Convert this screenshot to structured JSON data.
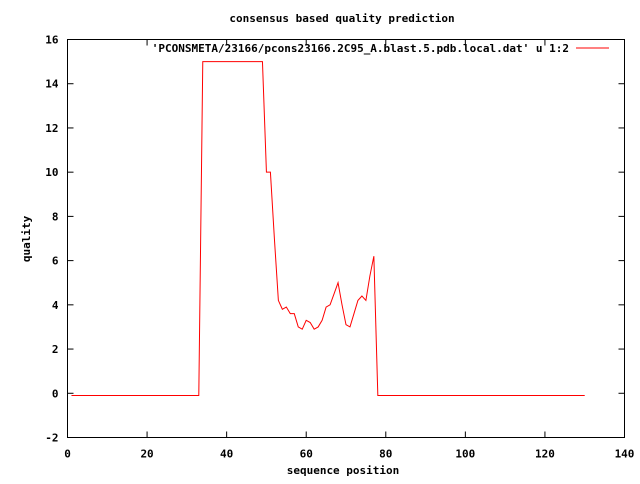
{
  "chart_data": {
    "type": "line",
    "title": "consensus based quality prediction",
    "xlabel": "sequence position",
    "ylabel": "quality",
    "xlim": [
      0,
      140
    ],
    "ylim": [
      -2,
      16
    ],
    "xticks": [
      0,
      20,
      40,
      60,
      80,
      100,
      120,
      140
    ],
    "yticks": [
      -2,
      0,
      2,
      4,
      6,
      8,
      10,
      12,
      14,
      16
    ],
    "grid": false,
    "legend_position": "top-right",
    "series": [
      {
        "name": "'PCONSMETA/23166/pcons23166.2C95_A.blast.5.pdb.local.dat' u 1:2",
        "color": "#ff0000",
        "x": [
          1,
          33,
          34,
          35,
          49,
          50,
          51,
          52,
          53,
          54,
          55,
          56,
          57,
          58,
          59,
          60,
          61,
          62,
          63,
          64,
          65,
          66,
          67,
          68,
          69,
          70,
          71,
          72,
          73,
          74,
          75,
          76,
          77,
          78,
          130
        ],
        "y": [
          -0.1,
          -0.1,
          15,
          15,
          15,
          10,
          10,
          7,
          4.2,
          3.8,
          3.9,
          3.6,
          3.6,
          3.0,
          2.9,
          3.3,
          3.2,
          2.9,
          3.0,
          3.3,
          3.9,
          4.0,
          4.5,
          5.0,
          4.0,
          3.1,
          3.0,
          3.6,
          4.2,
          4.4,
          4.2,
          5.3,
          6.2,
          -0.1,
          -0.1
        ]
      }
    ]
  }
}
